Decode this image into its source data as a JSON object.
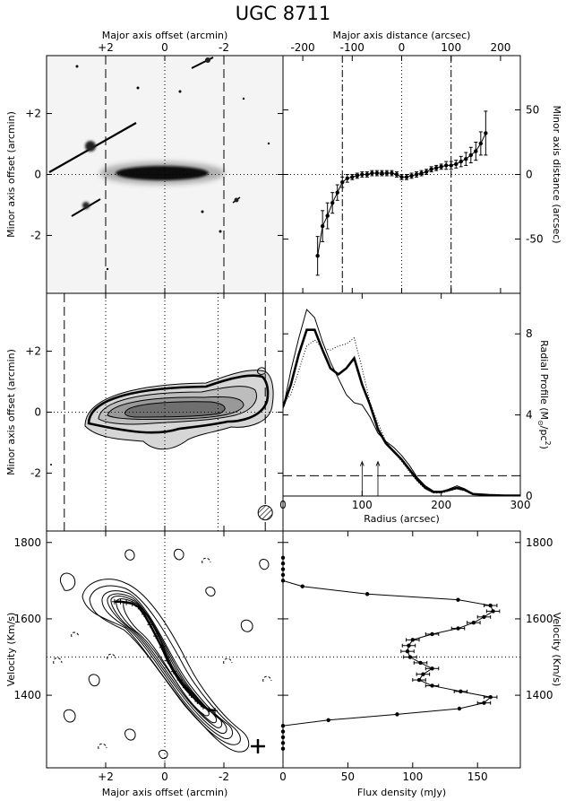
{
  "title": "UGC 8711",
  "chart_data": [
    {
      "id": "optical",
      "type": "image",
      "top_label": "Major axis offset (arcmin)",
      "ylabel": "Minor axis offset (arcmin)",
      "xlim": [
        4,
        -4
      ],
      "ylim": [
        -3.9,
        3.9
      ],
      "xticks": [
        "+2",
        "0",
        "-2"
      ],
      "xtick_values": [
        2,
        0,
        -2
      ],
      "yticks": [
        "+2",
        "0",
        "-2"
      ],
      "ytick_values": [
        2,
        0,
        -2
      ],
      "dashed_lines_x": [
        2.0,
        -2.0
      ],
      "dotted_lines": {
        "x": 0,
        "y": 0
      }
    },
    {
      "id": "warp",
      "type": "scatter",
      "top_label": "Major axis distance (arcsec)",
      "ylabel": "Minor axis distance (arcsec)",
      "xlim": [
        -240,
        240
      ],
      "ylim": [
        -92,
        92
      ],
      "xticks": [
        "-200",
        "-100",
        "0",
        "100",
        "200"
      ],
      "xtick_values": [
        -200,
        -100,
        0,
        100,
        200
      ],
      "yticks": [
        "50",
        "0",
        "-50"
      ],
      "ytick_values": [
        50,
        0,
        -50
      ],
      "dashdot_lines_x": [
        -120,
        100
      ],
      "x": [
        -170,
        -160,
        -150,
        -140,
        -130,
        -120,
        -110,
        -100,
        -90,
        -80,
        -70,
        -60,
        -50,
        -40,
        -30,
        -20,
        -10,
        0,
        10,
        20,
        30,
        40,
        50,
        60,
        70,
        80,
        90,
        100,
        110,
        120,
        130,
        140,
        150,
        160,
        170
      ],
      "y": [
        -63,
        -40,
        -32,
        -22,
        -14,
        -6,
        -3,
        -2,
        -1,
        0,
        0,
        1,
        1,
        1,
        1,
        1,
        0,
        -2,
        -2,
        -1,
        0,
        1,
        2,
        4,
        5,
        6,
        7,
        7,
        8,
        10,
        12,
        15,
        18,
        24,
        32
      ],
      "yerr": [
        15,
        12,
        10,
        8,
        6,
        4,
        3,
        2,
        2,
        2,
        2,
        2,
        2,
        2,
        2,
        2,
        2,
        2,
        2,
        2,
        2,
        2,
        2,
        2,
        2,
        2,
        3,
        3,
        3,
        4,
        5,
        6,
        7,
        9,
        17
      ]
    },
    {
      "id": "hi_map",
      "type": "contour",
      "ylabel": "Minor axis offset (arcmin)",
      "xlim": [
        4,
        -4
      ],
      "ylim": [
        -3.9,
        3.9
      ],
      "yticks": [
        "+2",
        "0",
        "-2"
      ],
      "ytick_values": [
        2,
        0,
        -2
      ],
      "dashed_lines_x": [
        3.4,
        -3.4
      ],
      "dotted_lines_x": [
        2.0,
        -1.8
      ],
      "dotted_lines": {
        "x": 0,
        "y": 0
      },
      "beam": {
        "x": -3.4,
        "y": -3.3
      }
    },
    {
      "id": "radial_profile",
      "type": "line",
      "xlabel": "Radius (arcsec)",
      "ylabel_main": "Radial Profile (M",
      "ylabel_sub": "⊙",
      "ylabel_tail": "/pc",
      "ylabel_sup": "2",
      "ylabel_close": ")",
      "xlim": [
        0,
        300
      ],
      "ylim": [
        0,
        10
      ],
      "xticks": [
        "0",
        "100",
        "200",
        "300"
      ],
      "xtick_values": [
        0,
        100,
        200,
        300
      ],
      "yticks": [
        "8",
        "4",
        "0"
      ],
      "ytick_values": [
        8,
        4,
        0
      ],
      "dashed_line_y": 1.0,
      "arrows_x": [
        100,
        120
      ],
      "series": [
        {
          "style": "thick",
          "x": [
            0,
            10,
            20,
            30,
            40,
            50,
            60,
            70,
            80,
            90,
            100,
            110,
            120,
            130,
            140,
            150,
            160,
            170,
            180,
            190,
            200,
            210,
            220,
            230,
            240,
            260,
            280,
            300
          ],
          "y": [
            4.4,
            5.5,
            7.0,
            8.2,
            8.2,
            7.2,
            6.3,
            6.0,
            6.3,
            6.8,
            5.5,
            4.5,
            3.3,
            2.6,
            2.2,
            1.8,
            1.3,
            0.8,
            0.4,
            0.2,
            0.2,
            0.3,
            0.4,
            0.3,
            0.1,
            0.05,
            0.02,
            0.02
          ]
        },
        {
          "style": "thin",
          "x": [
            0,
            10,
            20,
            30,
            40,
            50,
            60,
            70,
            80,
            90,
            100,
            110,
            120,
            130,
            140,
            150,
            160,
            170,
            180,
            190,
            200,
            210,
            220,
            230,
            240,
            260,
            280,
            300
          ],
          "y": [
            4.3,
            6.2,
            7.8,
            9.2,
            8.8,
            7.6,
            6.6,
            5.8,
            5.0,
            4.6,
            4.5,
            3.9,
            3.1,
            2.7,
            2.4,
            2.0,
            1.5,
            0.9,
            0.5,
            0.25,
            0.2,
            0.35,
            0.5,
            0.35,
            0.1,
            0.05,
            0.02,
            0.02
          ]
        },
        {
          "style": "dotted",
          "x": [
            0,
            10,
            20,
            30,
            40,
            50,
            60,
            70,
            80,
            90,
            100,
            110,
            120,
            130,
            140,
            150,
            160,
            170,
            180,
            190,
            200,
            210,
            220,
            230,
            240,
            260,
            280,
            300
          ],
          "y": [
            4.6,
            5.0,
            6.2,
            7.4,
            7.7,
            7.3,
            7.2,
            7.4,
            7.5,
            7.8,
            6.3,
            4.6,
            3.6,
            2.7,
            2.2,
            1.7,
            1.2,
            0.7,
            0.35,
            0.15,
            0.15,
            0.25,
            0.35,
            0.25,
            0.1,
            0.05,
            0.02,
            0.02
          ]
        }
      ]
    },
    {
      "id": "pv_diagram",
      "type": "contour",
      "xlabel": "Major axis offset (arcmin)",
      "ylabel": "Velocity (Km/s)",
      "xlim": [
        4,
        -4
      ],
      "ylim": [
        1210,
        1830
      ],
      "xticks": [
        "+2",
        "0",
        "-2"
      ],
      "xtick_values": [
        2,
        0,
        -2
      ],
      "yticks": [
        "1800",
        "1600",
        "1400"
      ],
      "ytick_values": [
        1800,
        1600,
        1400
      ],
      "dotted_lines": {
        "x": 0,
        "y": 1500
      },
      "rotation_curve": {
        "x": [
          1.7,
          1.5,
          1.3,
          1.1,
          0.9,
          0.7,
          0.5,
          0.3,
          0.1,
          -0.1,
          -0.3,
          -0.5,
          -0.7,
          -0.9,
          -1.1,
          -1.3,
          -1.5,
          -1.7
        ],
        "v": [
          1645,
          1645,
          1643,
          1640,
          1632,
          1612,
          1585,
          1555,
          1525,
          1490,
          1462,
          1440,
          1420,
          1400,
          1384,
          1370,
          1362,
          1360
        ]
      }
    },
    {
      "id": "global_profile",
      "type": "line",
      "xlabel": "Flux density (mJy)",
      "ylabel": "Velocity (Km/s)",
      "xlim": [
        0,
        183
      ],
      "ylim": [
        1210,
        1830
      ],
      "xticks": [
        "0",
        "50",
        "100",
        "150"
      ],
      "xtick_values": [
        0,
        50,
        100,
        150
      ],
      "yticks": [
        "1800",
        "1600",
        "1400"
      ],
      "ytick_values": [
        1800,
        1600,
        1400
      ],
      "dotted_line_v": 1500,
      "v": [
        1760,
        1745,
        1730,
        1715,
        1700,
        1685,
        1665,
        1650,
        1635,
        1620,
        1605,
        1590,
        1575,
        1560,
        1545,
        1530,
        1515,
        1500,
        1485,
        1470,
        1455,
        1440,
        1425,
        1410,
        1395,
        1380,
        1365,
        1350,
        1335,
        1320,
        1305,
        1290,
        1275,
        1260
      ],
      "flux": [
        0,
        0,
        0,
        0,
        0,
        15,
        65,
        135,
        160,
        162,
        155,
        147,
        135,
        115,
        100,
        97,
        96,
        98,
        106,
        115,
        108,
        105,
        115,
        137,
        160,
        155,
        136,
        88,
        35,
        0,
        0,
        0,
        0,
        0
      ],
      "err": [
        0,
        0,
        0,
        0,
        0,
        0,
        0,
        0,
        5,
        5,
        5,
        5,
        5,
        5,
        5,
        5,
        5,
        5,
        5,
        5,
        5,
        5,
        5,
        5,
        5,
        5,
        0,
        0,
        0,
        0,
        0,
        0,
        0,
        0
      ]
    }
  ]
}
